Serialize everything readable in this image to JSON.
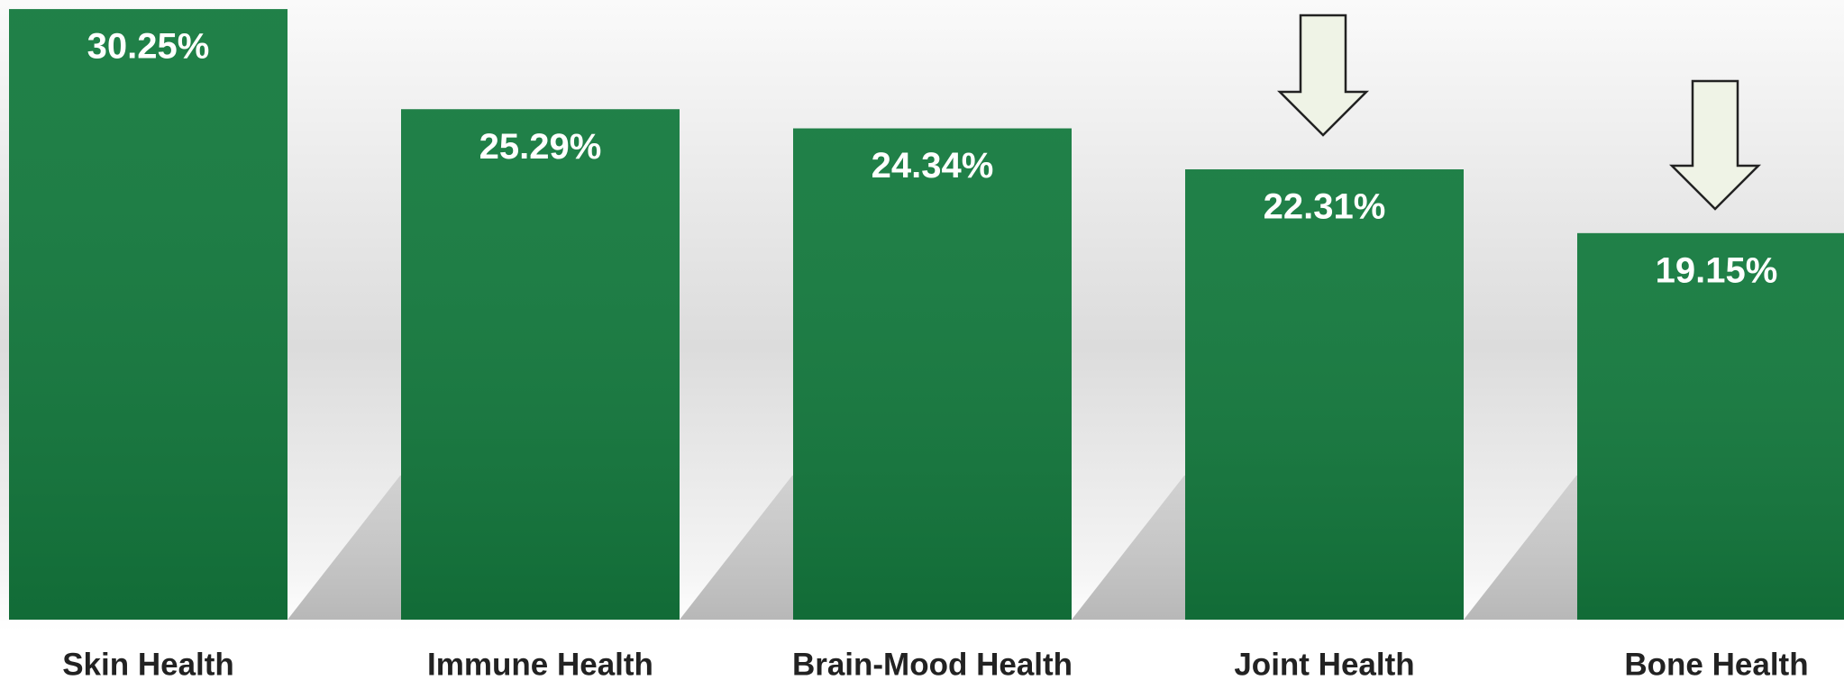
{
  "chart_data": {
    "type": "bar",
    "categories": [
      "Skin Health",
      "Immune Health",
      "Brain-Mood Health",
      "Joint Health",
      "Bone Health"
    ],
    "values": [
      30.25,
      25.29,
      24.34,
      22.31,
      19.15
    ],
    "value_labels": [
      "30.25%",
      "25.29%",
      "24.34%",
      "22.31%",
      "19.15%"
    ],
    "color": "#147a3e",
    "ylim": [
      0,
      30.7
    ]
  }
}
